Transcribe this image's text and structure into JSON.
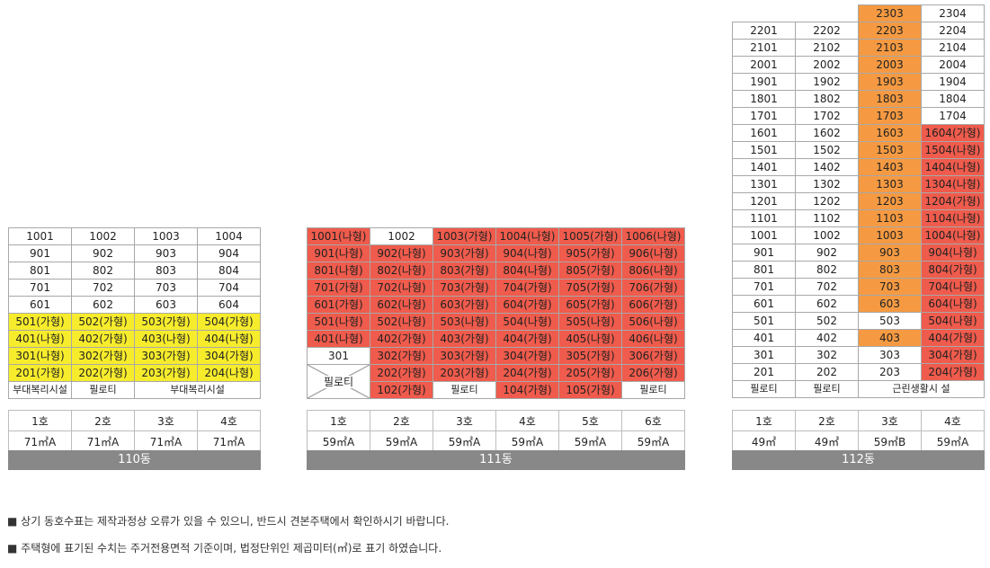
{
  "b110": {
    "rows": [
      [
        [
          "1001",
          "w"
        ],
        [
          "1002",
          "w"
        ],
        [
          "1003",
          "w"
        ],
        [
          "1004",
          "w"
        ]
      ],
      [
        [
          "901",
          "w"
        ],
        [
          "902",
          "w"
        ],
        [
          "903",
          "w"
        ],
        [
          "904",
          "w"
        ]
      ],
      [
        [
          "801",
          "w"
        ],
        [
          "802",
          "w"
        ],
        [
          "803",
          "w"
        ],
        [
          "804",
          "w"
        ]
      ],
      [
        [
          "701",
          "w"
        ],
        [
          "702",
          "w"
        ],
        [
          "703",
          "w"
        ],
        [
          "704",
          "w"
        ]
      ],
      [
        [
          "601",
          "w"
        ],
        [
          "602",
          "w"
        ],
        [
          "603",
          "w"
        ],
        [
          "604",
          "w"
        ]
      ],
      [
        [
          "501(가형)",
          "y"
        ],
        [
          "502(가형)",
          "y"
        ],
        [
          "503(가형)",
          "y"
        ],
        [
          "504(가형)",
          "y"
        ]
      ],
      [
        [
          "401(나형)",
          "y"
        ],
        [
          "402(가형)",
          "y"
        ],
        [
          "403(나형)",
          "y"
        ],
        [
          "404(나형)",
          "y"
        ]
      ],
      [
        [
          "301(나형)",
          "y"
        ],
        [
          "302(가형)",
          "y"
        ],
        [
          "303(가형)",
          "y"
        ],
        [
          "304(가형)",
          "y"
        ]
      ],
      [
        [
          "201(가형)",
          "y"
        ],
        [
          "202(가형)",
          "y"
        ],
        [
          "203(가형)",
          "y"
        ],
        [
          "204(나형)",
          "y"
        ]
      ]
    ],
    "base": [
      "부대복리시설",
      "필로티",
      "부대복리시설"
    ],
    "ho": [
      "1호",
      "2호",
      "3호",
      "4호"
    ],
    "types": [
      "71㎡A",
      "71㎡A",
      "71㎡A",
      "71㎡A"
    ],
    "label": "110동"
  },
  "b111": {
    "rows": [
      [
        [
          "1001(나형)",
          "r"
        ],
        [
          "1002",
          "w"
        ],
        [
          "1003(가형)",
          "r"
        ],
        [
          "1004(나형)",
          "r"
        ],
        [
          "1005(가형)",
          "r"
        ],
        [
          "1006(나형)",
          "r"
        ]
      ],
      [
        [
          "901(나형)",
          "r"
        ],
        [
          "902(나형)",
          "r"
        ],
        [
          "903(가형)",
          "r"
        ],
        [
          "904(나형)",
          "r"
        ],
        [
          "905(가형)",
          "r"
        ],
        [
          "906(나형)",
          "r"
        ]
      ],
      [
        [
          "801(나형)",
          "r"
        ],
        [
          "802(나형)",
          "r"
        ],
        [
          "803(가형)",
          "r"
        ],
        [
          "804(나형)",
          "r"
        ],
        [
          "805(가형)",
          "r"
        ],
        [
          "806(나형)",
          "r"
        ]
      ],
      [
        [
          "701(가형)",
          "r"
        ],
        [
          "702(나형)",
          "r"
        ],
        [
          "703(가형)",
          "r"
        ],
        [
          "704(가형)",
          "r"
        ],
        [
          "705(가형)",
          "r"
        ],
        [
          "706(가형)",
          "r"
        ]
      ],
      [
        [
          "601(가형)",
          "r"
        ],
        [
          "602(나형)",
          "r"
        ],
        [
          "603(가형)",
          "r"
        ],
        [
          "604(가형)",
          "r"
        ],
        [
          "605(가형)",
          "r"
        ],
        [
          "606(가형)",
          "r"
        ]
      ],
      [
        [
          "501(나형)",
          "r"
        ],
        [
          "502(나형)",
          "r"
        ],
        [
          "503(나형)",
          "r"
        ],
        [
          "504(나형)",
          "r"
        ],
        [
          "505(나형)",
          "r"
        ],
        [
          "506(나형)",
          "r"
        ]
      ],
      [
        [
          "401(나형)",
          "r"
        ],
        [
          "402(가형)",
          "r"
        ],
        [
          "403(가형)",
          "r"
        ],
        [
          "404(가형)",
          "r"
        ],
        [
          "405(나형)",
          "r"
        ],
        [
          "406(나형)",
          "r"
        ]
      ],
      [
        [
          "301",
          "w"
        ],
        [
          "302(가형)",
          "r"
        ],
        [
          "303(가형)",
          "r"
        ],
        [
          "304(가형)",
          "r"
        ],
        [
          "305(가형)",
          "r"
        ],
        [
          "306(가형)",
          "r"
        ]
      ],
      [
        [
          "",
          "x"
        ],
        [
          "202(가형)",
          "r"
        ],
        [
          "203(가형)",
          "r"
        ],
        [
          "204(가형)",
          "r"
        ],
        [
          "205(가형)",
          "r"
        ],
        [
          "206(가형)",
          "r"
        ]
      ],
      [
        [
          "",
          "x"
        ],
        [
          "102(가형)",
          "r"
        ],
        [
          "필로티",
          "w"
        ],
        [
          "104(가형)",
          "r"
        ],
        [
          "105(가형)",
          "r"
        ],
        [
          "필로티",
          "w"
        ]
      ]
    ],
    "pilotis_left": "필로티",
    "ho": [
      "1호",
      "2호",
      "3호",
      "4호",
      "5호",
      "6호"
    ],
    "types": [
      "59㎡A",
      "59㎡A",
      "59㎡A",
      "59㎡A",
      "59㎡A",
      "59㎡A"
    ],
    "label": "111동"
  },
  "b112": {
    "rows": [
      [
        [
          "",
          "e"
        ],
        [
          "",
          "e"
        ],
        [
          "2303",
          "o"
        ],
        [
          "2304",
          "w"
        ]
      ],
      [
        [
          "2201",
          "w"
        ],
        [
          "2202",
          "w"
        ],
        [
          "2203",
          "o"
        ],
        [
          "2204",
          "w"
        ]
      ],
      [
        [
          "2101",
          "w"
        ],
        [
          "2102",
          "w"
        ],
        [
          "2103",
          "o"
        ],
        [
          "2104",
          "w"
        ]
      ],
      [
        [
          "2001",
          "w"
        ],
        [
          "2002",
          "w"
        ],
        [
          "2003",
          "o"
        ],
        [
          "2004",
          "w"
        ]
      ],
      [
        [
          "1901",
          "w"
        ],
        [
          "1902",
          "w"
        ],
        [
          "1903",
          "o"
        ],
        [
          "1904",
          "w"
        ]
      ],
      [
        [
          "1801",
          "w"
        ],
        [
          "1802",
          "w"
        ],
        [
          "1803",
          "o"
        ],
        [
          "1804",
          "w"
        ]
      ],
      [
        [
          "1701",
          "w"
        ],
        [
          "1702",
          "w"
        ],
        [
          "1703",
          "o"
        ],
        [
          "1704",
          "w"
        ]
      ],
      [
        [
          "1601",
          "w"
        ],
        [
          "1602",
          "w"
        ],
        [
          "1603",
          "o"
        ],
        [
          "1604(가형)",
          "r"
        ]
      ],
      [
        [
          "1501",
          "w"
        ],
        [
          "1502",
          "w"
        ],
        [
          "1503",
          "o"
        ],
        [
          "1504(나형)",
          "r"
        ]
      ],
      [
        [
          "1401",
          "w"
        ],
        [
          "1402",
          "w"
        ],
        [
          "1403",
          "o"
        ],
        [
          "1404(나형)",
          "r"
        ]
      ],
      [
        [
          "1301",
          "w"
        ],
        [
          "1302",
          "w"
        ],
        [
          "1303",
          "o"
        ],
        [
          "1304(나형)",
          "r"
        ]
      ],
      [
        [
          "1201",
          "w"
        ],
        [
          "1202",
          "w"
        ],
        [
          "1203",
          "o"
        ],
        [
          "1204(가형)",
          "r"
        ]
      ],
      [
        [
          "1101",
          "w"
        ],
        [
          "1102",
          "w"
        ],
        [
          "1103",
          "o"
        ],
        [
          "1104(나형)",
          "r"
        ]
      ],
      [
        [
          "1001",
          "w"
        ],
        [
          "1002",
          "w"
        ],
        [
          "1003",
          "o"
        ],
        [
          "1004(나형)",
          "r"
        ]
      ],
      [
        [
          "901",
          "w"
        ],
        [
          "902",
          "w"
        ],
        [
          "903",
          "o"
        ],
        [
          "904(나형)",
          "r"
        ]
      ],
      [
        [
          "801",
          "w"
        ],
        [
          "802",
          "w"
        ],
        [
          "803",
          "o"
        ],
        [
          "804(가형)",
          "r"
        ]
      ],
      [
        [
          "701",
          "w"
        ],
        [
          "702",
          "w"
        ],
        [
          "703",
          "o"
        ],
        [
          "704(나형)",
          "r"
        ]
      ],
      [
        [
          "601",
          "w"
        ],
        [
          "602",
          "w"
        ],
        [
          "603",
          "o"
        ],
        [
          "604(나형)",
          "r"
        ]
      ],
      [
        [
          "501",
          "w"
        ],
        [
          "502",
          "w"
        ],
        [
          "503",
          "w"
        ],
        [
          "504(나형)",
          "r"
        ]
      ],
      [
        [
          "401",
          "w"
        ],
        [
          "402",
          "w"
        ],
        [
          "403",
          "o"
        ],
        [
          "404(가형)",
          "r"
        ]
      ],
      [
        [
          "301",
          "w"
        ],
        [
          "302",
          "w"
        ],
        [
          "303",
          "w"
        ],
        [
          "304(가형)",
          "r"
        ]
      ],
      [
        [
          "201",
          "w"
        ],
        [
          "202",
          "w"
        ],
        [
          "203",
          "w"
        ],
        [
          "204(가형)",
          "r"
        ]
      ]
    ],
    "base": [
      "필로티",
      "필로티",
      "근린생활시 설"
    ],
    "ho": [
      "1호",
      "2호",
      "3호",
      "4호"
    ],
    "types": [
      "49㎡",
      "49㎡",
      "59㎡B",
      "59㎡A"
    ],
    "label": "112동"
  },
  "notes": [
    "■ 상기 동호수표는 제작과정상 오류가 있을 수 있으니, 반드시 견본주택에서 확인하시기 바랍니다.",
    "■ 주택형에 표기된 수치는 주거전용면적 기준이며, 법정단위인 제곱미터(㎡)로 표기 하였습니다."
  ],
  "colors": {
    "yellow": "#f7ec2c",
    "red": "#ef5b4c",
    "orange": "#f59a42",
    "label_bg": "#888888"
  }
}
